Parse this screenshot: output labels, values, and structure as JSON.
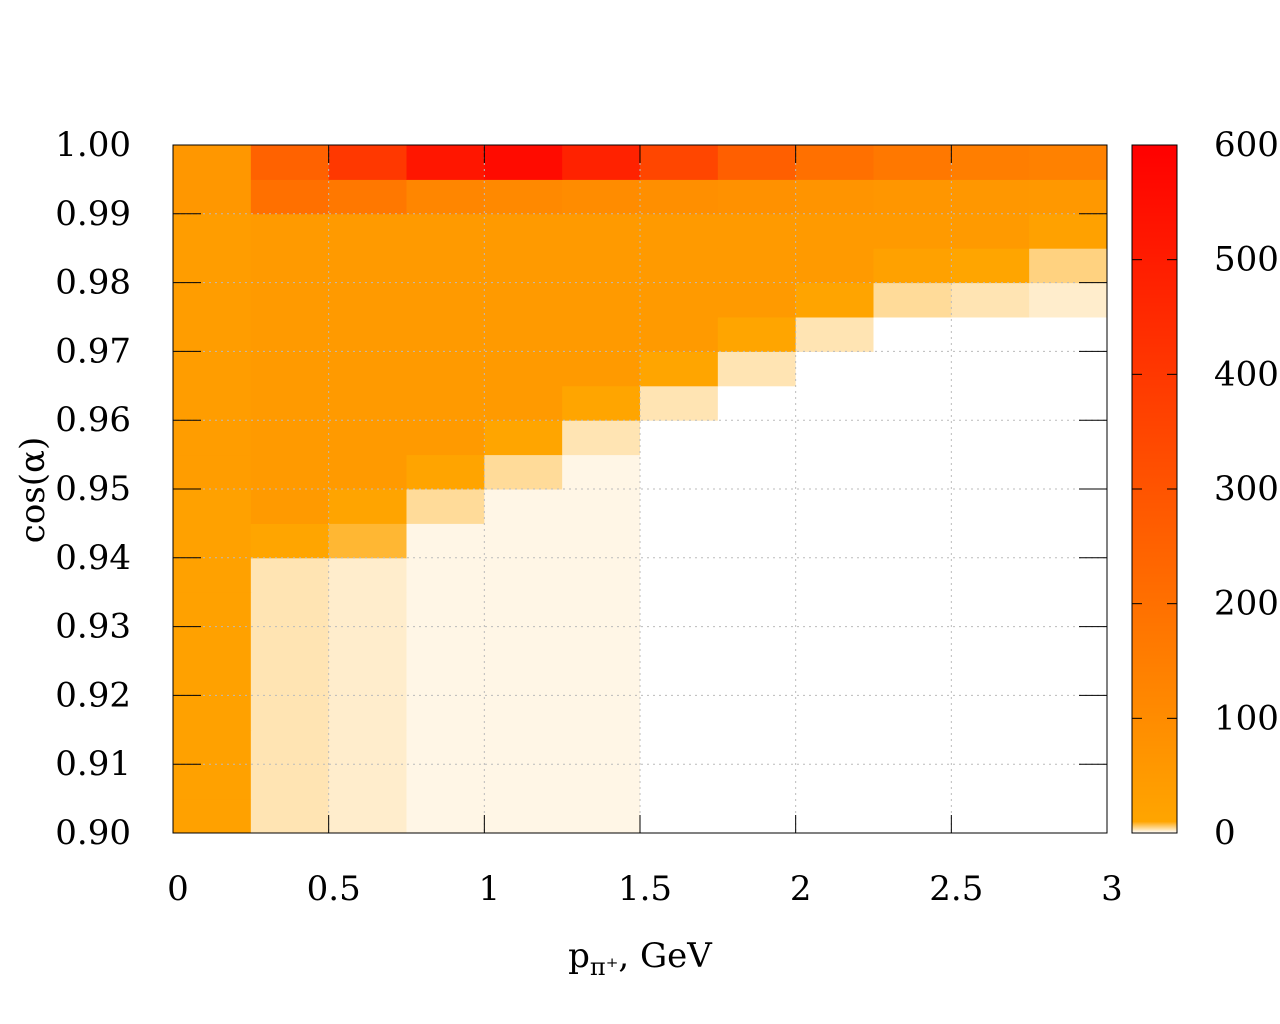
{
  "chart_data": {
    "type": "heatmap",
    "xlabel": [
      "p",
      "π⁺",
      ", GeV"
    ],
    "ylabel": "cos(α)",
    "x_bins": [
      0,
      0.25,
      0.5,
      0.75,
      1,
      1.25,
      1.5,
      1.75,
      2,
      2.25,
      2.5,
      2.75,
      3
    ],
    "y_bins": [
      0.9,
      0.905,
      0.91,
      0.915,
      0.92,
      0.925,
      0.93,
      0.935,
      0.94,
      0.945,
      0.95,
      0.955,
      0.96,
      0.965,
      0.97,
      0.975,
      0.98,
      0.985,
      0.99,
      0.995,
      1
    ],
    "values": [
      [
        25,
        3,
        2,
        1,
        1,
        1,
        0,
        0,
        0,
        0,
        0,
        0
      ],
      [
        25,
        3,
        2,
        1,
        1,
        1,
        0,
        0,
        0,
        0,
        0,
        0
      ],
      [
        25,
        3,
        2,
        1,
        1,
        1,
        0,
        0,
        0,
        0,
        0,
        0
      ],
      [
        25,
        3,
        2,
        1,
        1,
        1,
        0,
        0,
        0,
        0,
        0,
        0
      ],
      [
        25,
        3,
        2,
        1,
        1,
        1,
        0,
        0,
        0,
        0,
        0,
        0
      ],
      [
        25,
        3,
        2,
        1,
        1,
        1,
        0,
        0,
        0,
        0,
        0,
        0
      ],
      [
        25,
        3,
        2,
        1,
        1,
        1,
        0,
        0,
        0,
        0,
        0,
        0
      ],
      [
        25,
        3,
        2,
        1,
        1,
        1,
        0,
        0,
        0,
        0,
        0,
        0
      ],
      [
        25,
        10,
        8,
        1,
        1,
        1,
        0,
        0,
        0,
        0,
        0,
        0
      ],
      [
        25,
        50,
        15,
        4,
        1,
        1,
        0,
        0,
        0,
        0,
        0,
        0
      ],
      [
        40,
        50,
        50,
        12,
        4,
        1,
        0,
        0,
        0,
        0,
        0,
        0
      ],
      [
        40,
        50,
        50,
        50,
        10,
        3,
        0,
        0,
        0,
        0,
        0,
        0
      ],
      [
        40,
        50,
        50,
        50,
        50,
        10,
        3,
        0,
        0,
        0,
        0,
        0
      ],
      [
        40,
        50,
        50,
        50,
        50,
        50,
        10,
        3,
        0,
        0,
        0,
        0
      ],
      [
        40,
        50,
        50,
        50,
        50,
        50,
        50,
        10,
        3,
        0,
        0,
        0
      ],
      [
        40,
        50,
        50,
        50,
        50,
        50,
        50,
        50,
        15,
        4,
        3,
        2
      ],
      [
        40,
        50,
        50,
        50,
        50,
        50,
        50,
        50,
        50,
        25,
        10,
        5
      ],
      [
        40,
        50,
        50,
        50,
        50,
        50,
        50,
        50,
        50,
        50,
        50,
        25
      ],
      [
        60,
        200,
        170,
        120,
        110,
        100,
        90,
        80,
        70,
        65,
        60,
        55
      ],
      [
        60,
        250,
        400,
        520,
        560,
        480,
        350,
        260,
        200,
        170,
        150,
        140
      ]
    ],
    "xlim": [
      0,
      3
    ],
    "xticks": [
      0,
      0.5,
      1,
      1.5,
      2,
      2.5,
      3
    ],
    "ylim": [
      0.9,
      1
    ],
    "yticks": [
      {
        "value": 0.9,
        "label": "0.90"
      },
      0.91,
      0.92,
      0.93,
      0.94,
      0.95,
      0.96,
      0.97,
      0.98,
      0.99,
      {
        "value": 1,
        "label": "1.00"
      }
    ],
    "cblim": [
      0,
      600
    ],
    "cbticks": [
      0,
      100,
      200,
      300,
      400,
      500,
      600
    ],
    "palette": [
      {
        "value": 0,
        "color": "#ffffff"
      },
      {
        "value": 10,
        "color": "#ffa500"
      },
      {
        "value": 600,
        "color": "#ff0000"
      }
    ],
    "grid": true
  }
}
